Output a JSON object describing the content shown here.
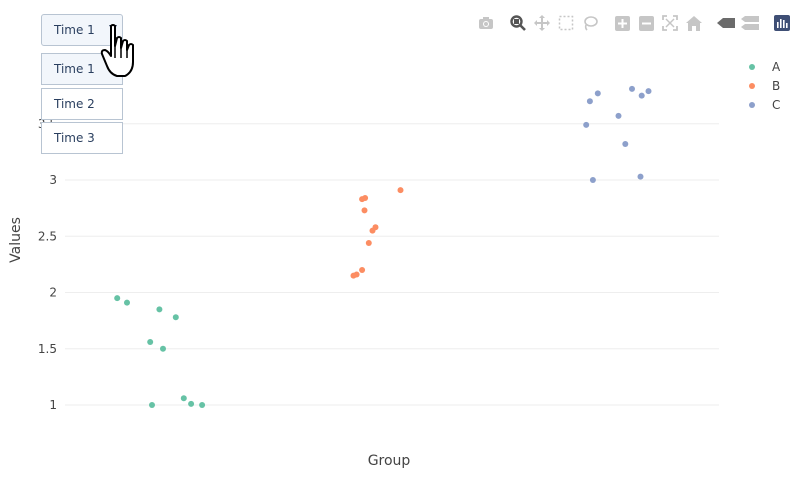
{
  "chart_data": {
    "type": "scatter",
    "xlabel": "Group",
    "ylabel": "Values",
    "ylim": [
      0.8,
      3.9
    ],
    "yticks": [
      1,
      1.5,
      2,
      2.5,
      3,
      3.5
    ],
    "ytick_labels": [
      "1",
      "1.5",
      "2",
      "2.5",
      "3",
      "3.5"
    ],
    "grid": true,
    "legend_position": "top-right",
    "categories": [
      "A",
      "B",
      "C"
    ],
    "series": [
      {
        "name": "A",
        "color": "#66c2a5",
        "x": [
          "A",
          "A",
          "A",
          "A",
          "A",
          "A",
          "A",
          "A",
          "A",
          "A"
        ],
        "y": [
          1.95,
          1.91,
          1.85,
          1.78,
          1.56,
          1.5,
          1.0,
          1.06,
          1.01,
          1.0
        ]
      },
      {
        "name": "B",
        "color": "#fc8d62",
        "x": [
          "B",
          "B",
          "B",
          "B",
          "B",
          "B",
          "B",
          "B",
          "B",
          "B"
        ],
        "y": [
          2.15,
          2.16,
          2.2,
          2.83,
          2.84,
          2.73,
          2.44,
          2.55,
          2.58,
          2.91
        ]
      },
      {
        "name": "C",
        "color": "#8da0cb",
        "x": [
          "C",
          "C",
          "C",
          "C",
          "C",
          "C",
          "C",
          "C",
          "C",
          "C"
        ],
        "y": [
          3.49,
          3.7,
          3.77,
          3.0,
          3.57,
          3.32,
          3.81,
          3.75,
          3.03,
          3.79
        ]
      }
    ]
  },
  "dropdown": {
    "selected": "Time 1",
    "options": [
      "Time 1",
      "Time 2",
      "Time 3"
    ]
  },
  "modebar": {
    "icons": [
      "camera-icon",
      "zoom-icon",
      "pan-icon",
      "box-select-icon",
      "lasso-icon",
      "zoom-in-icon",
      "zoom-out-icon",
      "autoscale-icon",
      "reset-axes-icon",
      "spike-lines-icon",
      "compare-hover-icon",
      "plotly-logo-icon"
    ]
  }
}
